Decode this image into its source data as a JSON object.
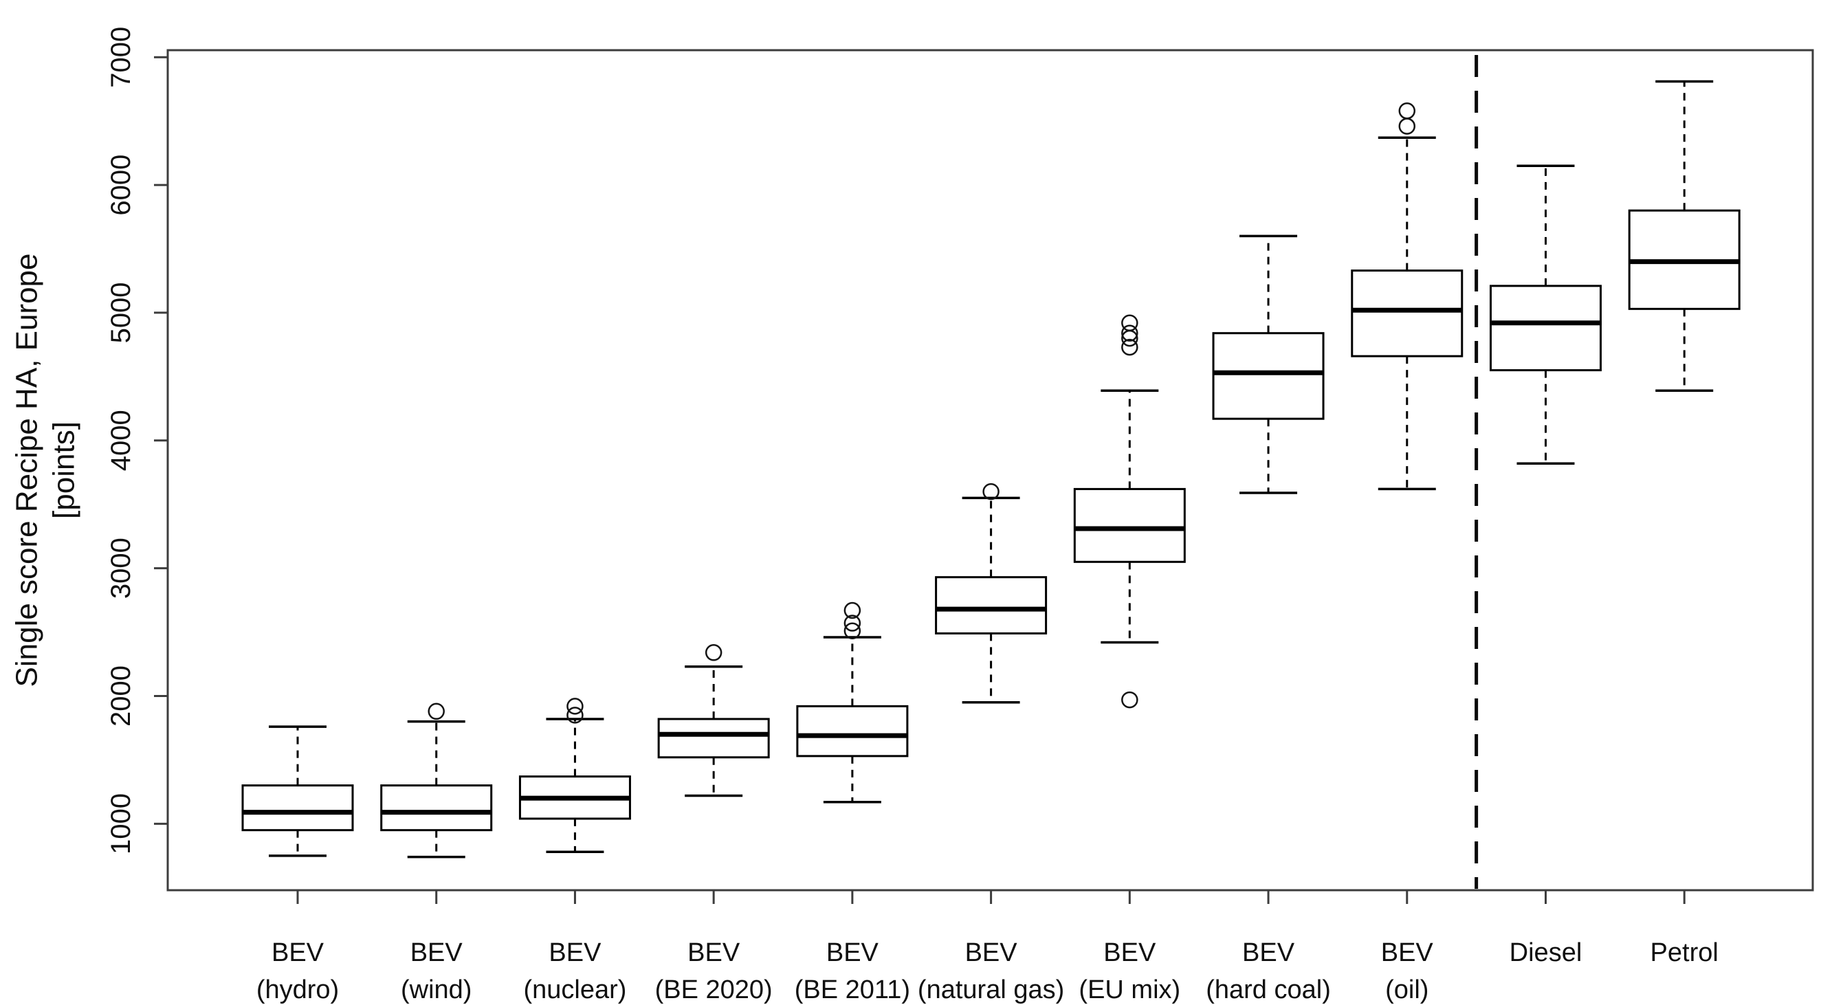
{
  "chart_data": {
    "type": "boxplot",
    "title": "",
    "xlabel": "",
    "ylabel": "Single score Recipe HA, Europe [points]",
    "ylabel_line1": "Single score Recipe HA, Europe",
    "ylabel_line2": "[points]",
    "ylim": [
      480,
      7055
    ],
    "yticks": [
      1000,
      2000,
      3000,
      4000,
      5000,
      6000,
      7000
    ],
    "grid": false,
    "legend": "none",
    "separator_after_index": 8,
    "line_color": "#000000",
    "box_fill": "#ffffff",
    "boxes": [
      {
        "label_line1": "BEV",
        "label_line2": "(hydro)",
        "whisker_low": 750,
        "q1": 950,
        "median": 1090,
        "q3": 1300,
        "whisker_high": 1760,
        "outliers": []
      },
      {
        "label_line1": "BEV",
        "label_line2": "(wind)",
        "whisker_low": 740,
        "q1": 950,
        "median": 1090,
        "q3": 1300,
        "whisker_high": 1800,
        "outliers": [
          1880
        ]
      },
      {
        "label_line1": "BEV",
        "label_line2": "(nuclear)",
        "whisker_low": 780,
        "q1": 1040,
        "median": 1200,
        "q3": 1370,
        "whisker_high": 1820,
        "outliers": [
          1850,
          1920
        ]
      },
      {
        "label_line1": "BEV",
        "label_line2": "(BE 2020)",
        "whisker_low": 1220,
        "q1": 1520,
        "median": 1700,
        "q3": 1820,
        "whisker_high": 2230,
        "outliers": [
          2340
        ]
      },
      {
        "label_line1": "BEV",
        "label_line2": "(BE 2011)",
        "whisker_low": 1170,
        "q1": 1530,
        "median": 1690,
        "q3": 1920,
        "whisker_high": 2460,
        "outliers": [
          2510,
          2570,
          2670
        ]
      },
      {
        "label_line1": "BEV",
        "label_line2": "(natural gas)",
        "whisker_low": 1950,
        "q1": 2490,
        "median": 2680,
        "q3": 2930,
        "whisker_high": 3550,
        "outliers": [
          3600
        ]
      },
      {
        "label_line1": "BEV",
        "label_line2": "(EU mix)",
        "whisker_low": 2420,
        "q1": 3050,
        "median": 3310,
        "q3": 3620,
        "whisker_high": 4390,
        "outliers": [
          1970,
          4730,
          4800,
          4840,
          4920
        ]
      },
      {
        "label_line1": "BEV",
        "label_line2": "(hard coal)",
        "whisker_low": 3590,
        "q1": 4170,
        "median": 4530,
        "q3": 4840,
        "whisker_high": 5600,
        "outliers": []
      },
      {
        "label_line1": "BEV",
        "label_line2": "(oil)",
        "whisker_low": 3620,
        "q1": 4660,
        "median": 5020,
        "q3": 5330,
        "whisker_high": 6370,
        "outliers": [
          6460,
          6580
        ]
      },
      {
        "label_line1": "Diesel",
        "label_line2": "",
        "whisker_low": 3820,
        "q1": 4550,
        "median": 4920,
        "q3": 5210,
        "whisker_high": 6150,
        "outliers": []
      },
      {
        "label_line1": "Petrol",
        "label_line2": "",
        "whisker_low": 4390,
        "q1": 5030,
        "median": 5400,
        "q3": 5800,
        "whisker_high": 6810,
        "outliers": []
      }
    ]
  }
}
